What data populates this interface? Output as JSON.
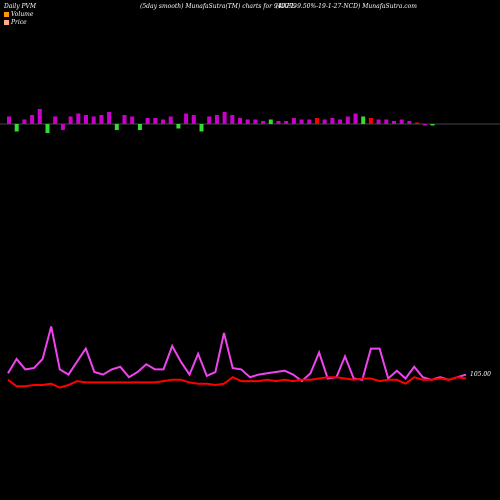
{
  "header": {
    "left": "Daily PVM",
    "center": "(5day smooth) MunafaSutra(TM) charts for 940799",
    "right": "(KAFL-9.50%-19-1-27-NCD) MunafaSutra.com"
  },
  "legend": [
    {
      "label": "Volume",
      "color": "#ff9900"
    },
    {
      "label": "Price",
      "color": "#ffaa88"
    }
  ],
  "colors": {
    "background": "#000000",
    "volume_up": "#cc00cc",
    "volume_down": "#33dd33",
    "volume_red": "#ff0000",
    "baseline": "#888888",
    "line_magenta": "#ee44ee",
    "line_red": "#ff0000"
  },
  "chart_data": [
    {
      "type": "bar",
      "title": "Volume",
      "values": [
        5,
        -5,
        3,
        6,
        10,
        -6,
        5,
        -4,
        5,
        7,
        6,
        5,
        6,
        8,
        -4,
        6,
        5,
        -4,
        4,
        4,
        3,
        5,
        -3,
        7,
        6,
        -5,
        5,
        6,
        8,
        6,
        4,
        3,
        3,
        2,
        3,
        2,
        2,
        4,
        3,
        3,
        4,
        3,
        4,
        3,
        5,
        7,
        5,
        4,
        3,
        3,
        2,
        3,
        2,
        1,
        -1,
        -1
      ],
      "colors": [
        "up",
        "down",
        "up",
        "up",
        "up",
        "down",
        "up",
        "up",
        "up",
        "up",
        "up",
        "up",
        "up",
        "up",
        "down",
        "up",
        "up",
        "down",
        "up",
        "up",
        "up",
        "up",
        "down",
        "up",
        "up",
        "down",
        "up",
        "up",
        "up",
        "up",
        "up",
        "up",
        "up",
        "up",
        "down",
        "up",
        "up",
        "up",
        "up",
        "up",
        "red",
        "up",
        "up",
        "up",
        "up",
        "up",
        "down",
        "red",
        "up",
        "up",
        "up",
        "up",
        "up",
        "red",
        "up",
        "down"
      ]
    },
    {
      "type": "line",
      "title": "Price",
      "series": [
        {
          "color": "#ee44ee",
          "values": [
            9.0,
            20,
            12,
            13,
            20,
            45,
            12,
            8,
            18,
            28,
            10,
            8,
            12,
            14,
            6,
            10,
            16,
            12,
            12,
            30,
            18,
            8,
            24,
            7,
            10,
            40,
            13,
            12,
            6,
            8,
            9,
            10,
            11,
            8,
            3,
            9,
            25,
            5,
            6,
            22,
            5,
            4,
            28,
            28,
            5,
            11,
            5,
            14,
            6,
            4,
            6,
            4,
            6,
            8
          ]
        },
        {
          "color": "#ff0000",
          "values": [
            4,
            -1,
            -1,
            0,
            0,
            1,
            -2,
            0,
            3,
            2,
            2,
            2,
            2,
            2,
            2,
            2,
            2,
            2,
            3,
            4,
            4,
            2,
            1,
            1,
            0,
            1,
            6,
            3,
            3,
            3,
            4,
            3,
            4,
            3,
            4,
            4,
            5,
            6,
            6,
            5,
            4,
            5,
            5,
            3,
            4,
            4,
            1,
            6,
            4,
            4,
            5,
            4,
            6,
            5
          ]
        }
      ],
      "end_label": "105.00"
    }
  ]
}
